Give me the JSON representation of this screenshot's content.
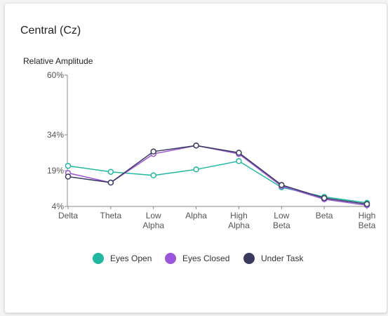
{
  "card": {
    "title": "Central (Cz)"
  },
  "chart_data": {
    "type": "line",
    "title": "Central (Cz)",
    "ylabel": "Relative Amplitude",
    "xlabel": "",
    "categories": [
      "Delta",
      "Theta",
      "Low\nAlpha",
      "Alpha",
      "High\nAlpha",
      "Low\nBeta",
      "Beta",
      "High\nBeta"
    ],
    "yticks": [
      4,
      19,
      34,
      60
    ],
    "ytick_labels": [
      "4%",
      "19%",
      "34%",
      "60%"
    ],
    "ylim": [
      4,
      60
    ],
    "legend_position": "bottom",
    "grid": false,
    "series": [
      {
        "name": "Eyes Open",
        "color": "#22b8a0",
        "values": [
          21,
          18.5,
          17,
          19.5,
          23,
          12,
          8,
          5.5
        ]
      },
      {
        "name": "Eyes Closed",
        "color": "#9b55d8",
        "values": [
          18,
          14,
          26,
          29.5,
          26,
          12.5,
          7,
          4.5
        ]
      },
      {
        "name": "Under Task",
        "color": "#3a3a5e",
        "values": [
          16.5,
          14,
          27,
          29.5,
          26.5,
          13,
          7.5,
          5
        ]
      }
    ]
  }
}
